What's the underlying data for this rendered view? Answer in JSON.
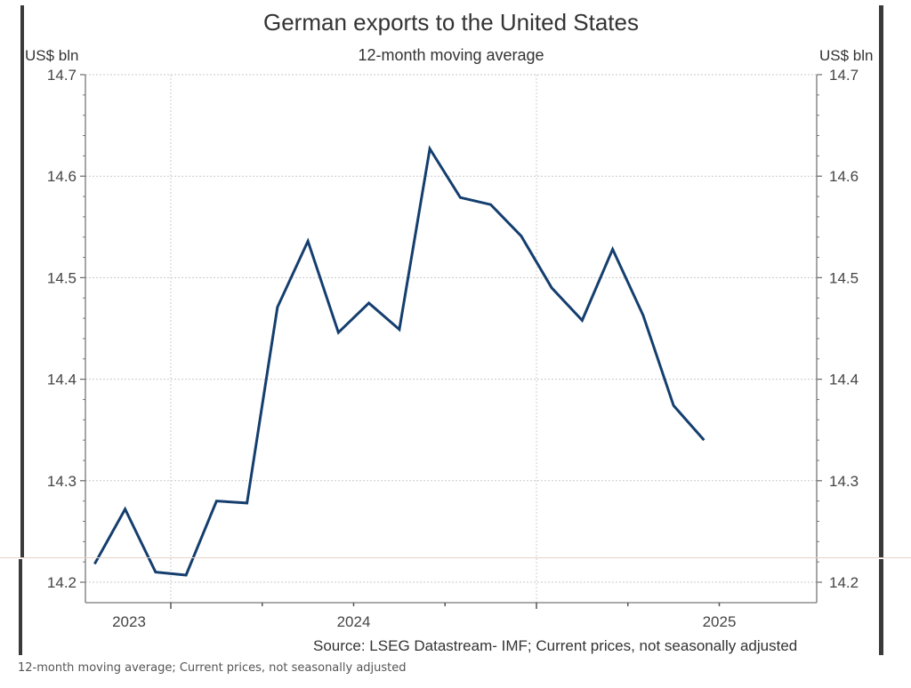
{
  "chart_data": {
    "type": "line",
    "title": "German exports to the United States",
    "subtitle": "12-month moving average",
    "ylabel_left": "US$ bln",
    "ylabel_right": "US$ bln",
    "xlabel": "",
    "ylim": [
      14.2,
      14.7
    ],
    "yticks": [
      14.7,
      14.6,
      14.5,
      14.4,
      14.3,
      14.2
    ],
    "ytick_labels": [
      "14.7",
      "14.6",
      "14.5",
      "14.4",
      "14.3",
      "14.2"
    ],
    "x_year_labels": [
      "2023",
      "2024",
      "2025"
    ],
    "x_range_months": [
      "2023-Oct",
      "2025-Jun"
    ],
    "grid": true,
    "legend": "none",
    "series": [
      {
        "name": "German exports to the United States (12-month moving average)",
        "color": "#143e6e",
        "x": [
          "2023-10",
          "2023-11",
          "2023-12",
          "2024-01",
          "2024-02",
          "2024-03",
          "2024-04",
          "2024-05",
          "2024-06",
          "2024-07",
          "2024-08",
          "2024-09",
          "2024-10",
          "2024-11",
          "2024-12",
          "2025-01",
          "2025-02",
          "2025-03",
          "2025-04",
          "2025-05",
          "2025-06"
        ],
        "values": [
          14.218,
          14.272,
          14.21,
          14.207,
          14.28,
          14.278,
          14.471,
          14.536,
          14.446,
          14.475,
          14.449,
          14.627,
          14.579,
          14.572,
          14.541,
          14.49,
          14.458,
          14.528,
          14.463,
          14.374,
          14.34
        ]
      }
    ],
    "source": "Source: LSEG Datastream- IMF; Current prices, not seasonally adjusted"
  },
  "caption": "12-month moving average; Current prices, not seasonally adjusted"
}
